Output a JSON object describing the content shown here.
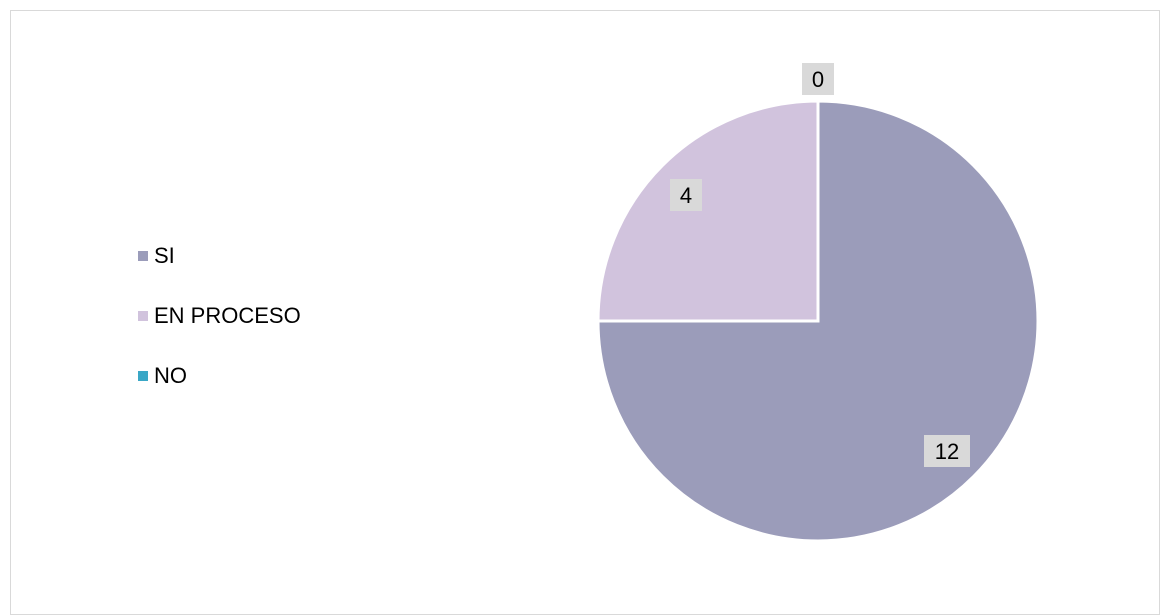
{
  "chart_data": {
    "type": "pie",
    "title": "",
    "categories": [
      "SI",
      "EN PROCESO",
      "NO"
    ],
    "values": [
      12,
      4,
      0
    ],
    "colors": [
      "#9b9cba",
      "#d1c3dd",
      "#3aa7c6"
    ],
    "data_labels": [
      "12",
      "4",
      "0"
    ],
    "legend_position": "left",
    "start_angle_deg": 0,
    "direction": "clockwise"
  }
}
